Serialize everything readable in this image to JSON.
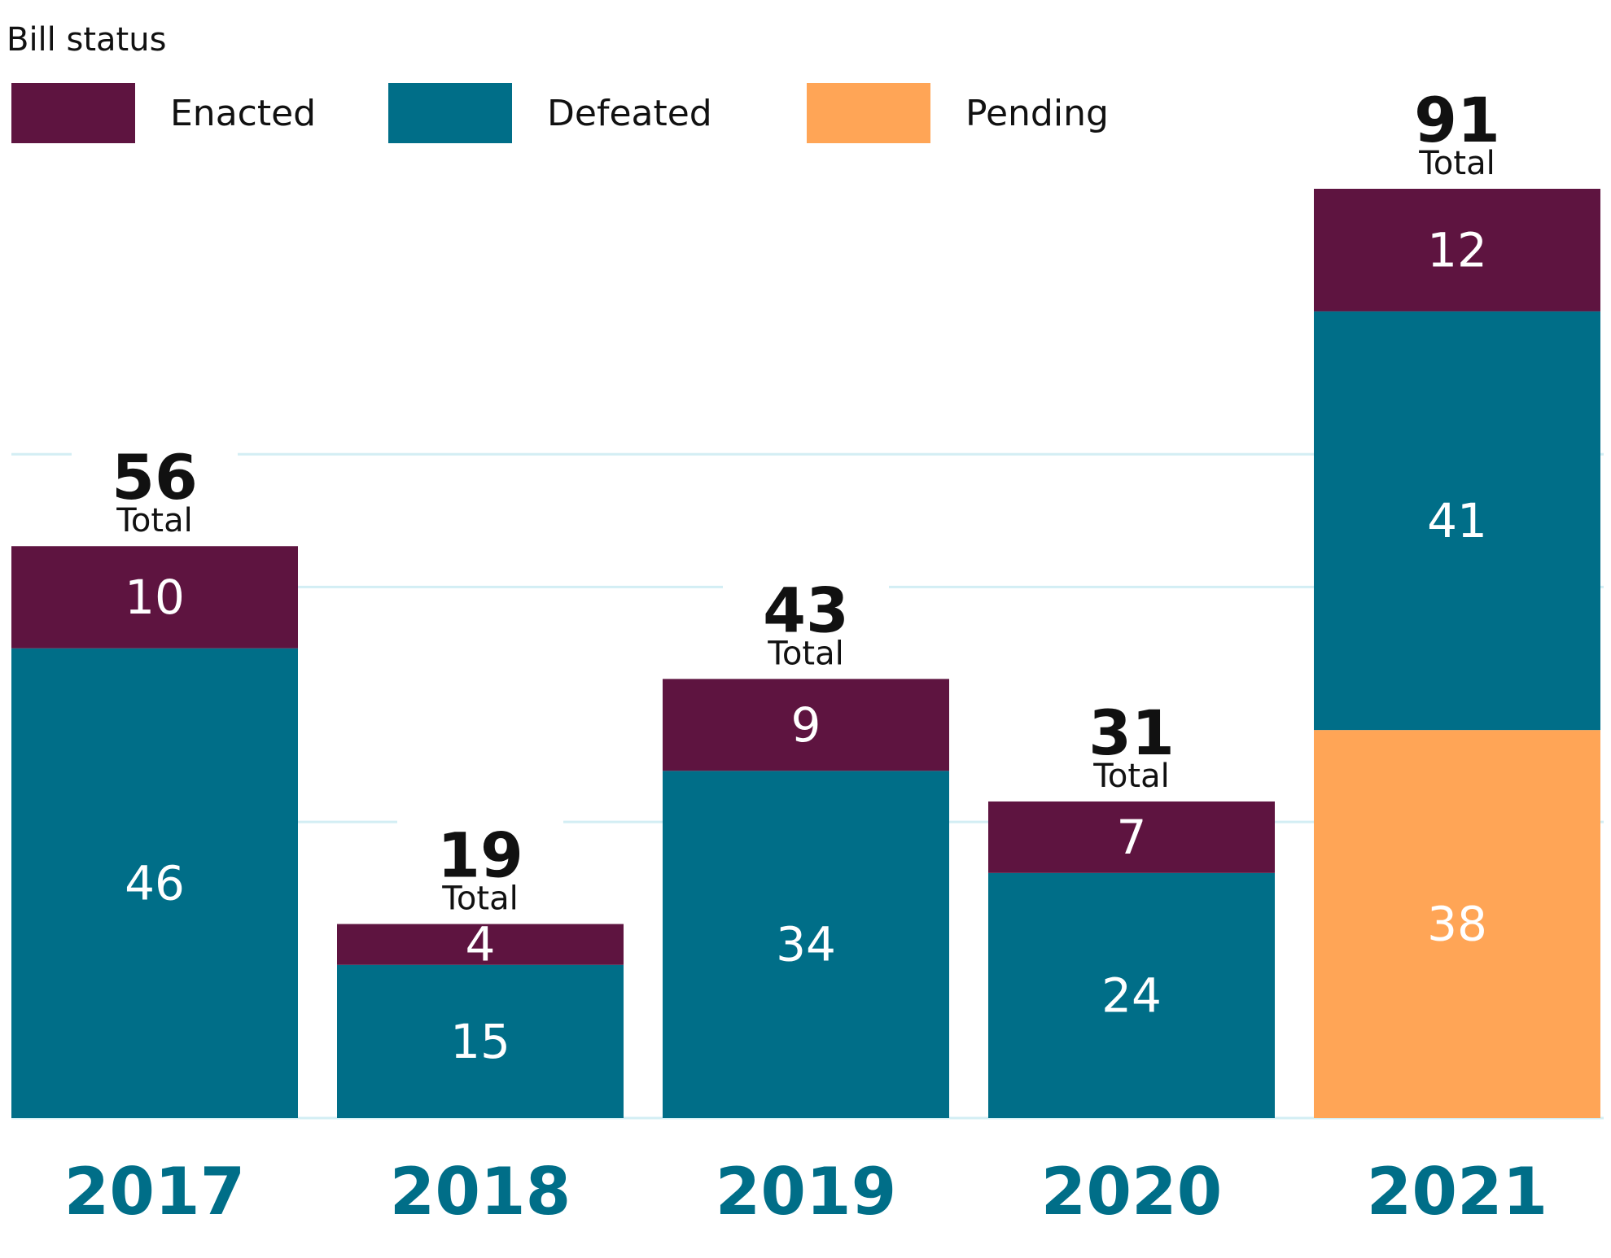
{
  "legend": {
    "title": "Bill status",
    "items": [
      {
        "label": "Enacted",
        "color": "#5e1440"
      },
      {
        "label": "Defeated",
        "color": "#006e88"
      },
      {
        "label": "Pending",
        "color": "#ffa556"
      }
    ]
  },
  "chart_data": {
    "type": "bar",
    "stacked": true,
    "title": "Bill status",
    "xlabel": "",
    "ylabel": "",
    "categories": [
      "2017",
      "2018",
      "2019",
      "2020",
      "2021"
    ],
    "series": [
      {
        "name": "Pending",
        "color": "#ffa556",
        "values": [
          0,
          0,
          0,
          0,
          38
        ]
      },
      {
        "name": "Defeated",
        "color": "#006e88",
        "values": [
          46,
          15,
          34,
          24,
          41
        ]
      },
      {
        "name": "Enacted",
        "color": "#5e1440",
        "values": [
          10,
          4,
          9,
          7,
          12
        ]
      }
    ],
    "totals": [
      56,
      19,
      43,
      31,
      91
    ],
    "total_label": "Total",
    "ylim": [
      0,
      91
    ],
    "gridlines": [
      29,
      52,
      65
    ],
    "grid_color": "#d3eef4",
    "label_colors": {
      "segment": "#ffffff",
      "total": "#111111",
      "year": "#006e88"
    }
  }
}
